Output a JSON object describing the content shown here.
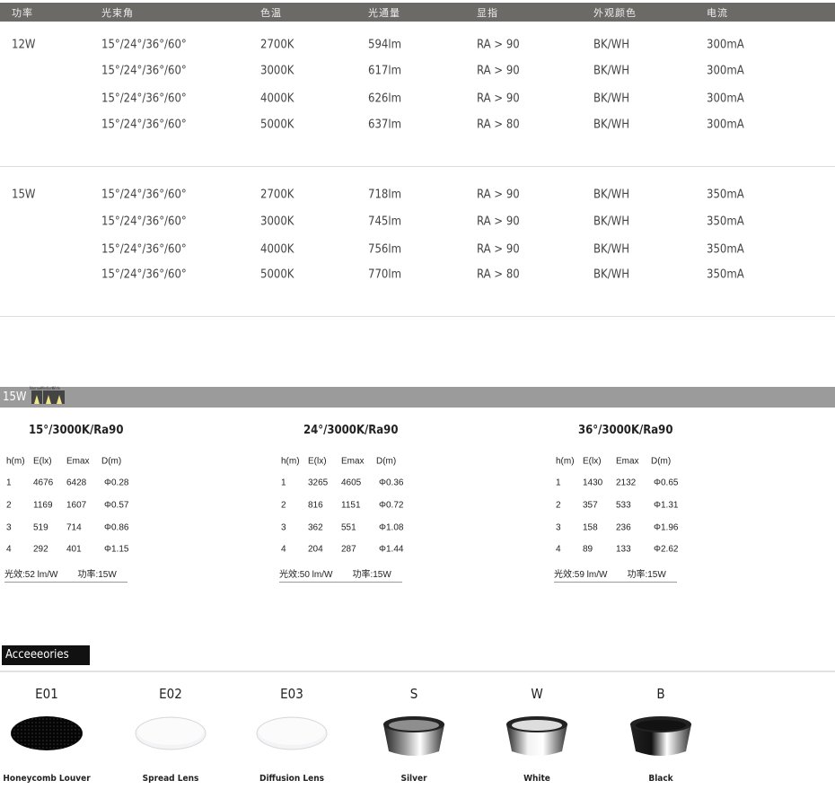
{
  "spec_table": {
    "headers": [
      "功率",
      "光束角",
      "色温",
      "光通量",
      "显指",
      "外观颜色",
      "电流"
    ],
    "groups": [
      {
        "power": "12W",
        "rows": [
          [
            "15°/24°/36°/60°",
            "2700K",
            "594lm",
            "RA > 90",
            "BK/WH",
            "300mA"
          ],
          [
            "15°/24°/36°/60°",
            "3000K",
            "617lm",
            "RA > 90",
            "BK/WH",
            "300mA"
          ],
          [
            "15°/24°/36°/60°",
            "4000K",
            "626lm",
            "RA > 90",
            "BK/WH",
            "300mA"
          ],
          [
            "15°/24°/36°/60°",
            "5000K",
            "637lm",
            "RA > 80",
            "BK/WH",
            "300mA"
          ]
        ]
      },
      {
        "power": "15W",
        "rows": [
          [
            "15°/24°/36°/60°",
            "2700K",
            "718lm",
            "RA > 90",
            "BK/WH",
            "350mA"
          ],
          [
            "15°/24°/36°/60°",
            "3000K",
            "745lm",
            "RA > 90",
            "BK/WH",
            "350mA"
          ],
          [
            "15°/24°/36°/60°",
            "4000K",
            "756lm",
            "RA > 90",
            "BK/WH",
            "350mA"
          ],
          [
            "15°/24°/36°/60°",
            "5000K",
            "770lm",
            "RA > 80",
            "BK/WH",
            "350mA"
          ]
        ]
      }
    ]
  },
  "photometric": {
    "power_label": "15W",
    "beams": [
      "Narrow",
      "Medium",
      "Wide"
    ],
    "blocks": [
      {
        "title": "15°/3000K/Ra90",
        "headers": [
          "h(m)",
          "E(lx)",
          "Emax",
          "D(m)"
        ],
        "rows": [
          [
            "1",
            "4676",
            "6428",
            "Φ0.28"
          ],
          [
            "2",
            "1169",
            "1607",
            "Φ0.57"
          ],
          [
            "3",
            "519",
            "714",
            "Φ0.86"
          ],
          [
            "4",
            "292",
            "401",
            "Φ1.15"
          ]
        ],
        "efficacy": "光效:52 lm/W",
        "power": "功率:15W"
      },
      {
        "title": "24°/3000K/Ra90",
        "headers": [
          "h(m)",
          "E(lx)",
          "Emax",
          "D(m)"
        ],
        "rows": [
          [
            "1",
            "3265",
            "4605",
            "Φ0.36"
          ],
          [
            "2",
            "816",
            "1151",
            "Φ0.72"
          ],
          [
            "3",
            "362",
            "551",
            "Φ1.08"
          ],
          [
            "4",
            "204",
            "287",
            "Φ1.44"
          ]
        ],
        "efficacy": "光效:50 lm/W",
        "power": "功率:15W"
      },
      {
        "title": "36°/3000K/Ra90",
        "headers": [
          "h(m)",
          "E(lx)",
          "Emax",
          "D(m)"
        ],
        "rows": [
          [
            "1",
            "1430",
            "2132",
            "Φ0.65"
          ],
          [
            "2",
            "357",
            "533",
            "Φ1.31"
          ],
          [
            "3",
            "158",
            "236",
            "Φ1.96"
          ],
          [
            "4",
            "89",
            "133",
            "Φ2.62"
          ]
        ],
        "efficacy": "光效:59 lm/W",
        "power": "功率:15W"
      }
    ]
  },
  "accessories": {
    "title": "Acceeeories",
    "items": [
      {
        "code": "E01",
        "label": "Honeycomb Louver",
        "kind": "louver"
      },
      {
        "code": "E02",
        "label": "Spread Lens",
        "kind": "lens"
      },
      {
        "code": "E03",
        "label": "Diffusion Lens",
        "kind": "lens"
      },
      {
        "code": "S",
        "label": "Silver",
        "kind": "reflector",
        "color": "#9a9a9a"
      },
      {
        "code": "W",
        "label": "White",
        "kind": "reflector",
        "color": "#f2f2f2"
      },
      {
        "code": "B",
        "label": "Black",
        "kind": "reflector",
        "color": "#111111"
      }
    ]
  }
}
